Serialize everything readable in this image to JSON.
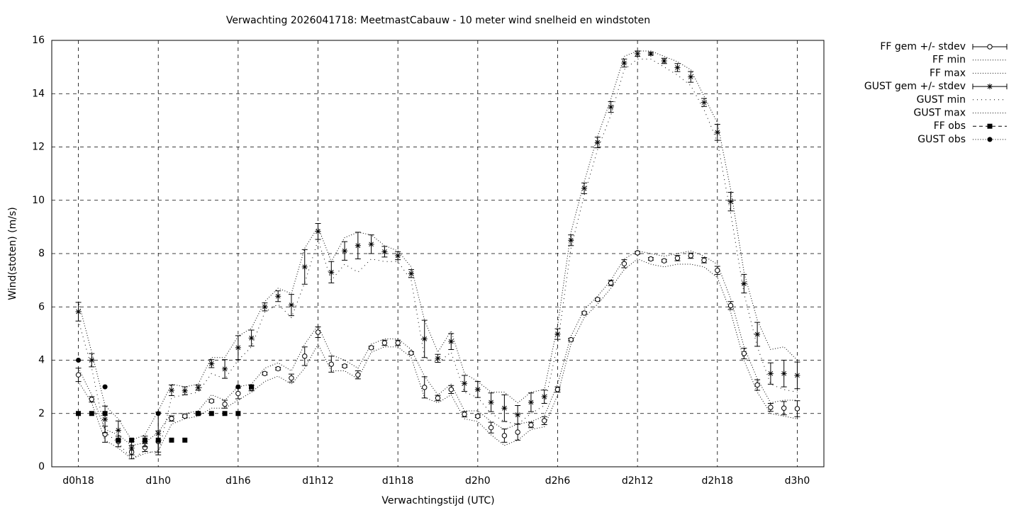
{
  "chart_data": {
    "type": "line",
    "title": "Verwachting 2026041718: MeetmastCabauw - 10 meter wind snelheid en windstoten",
    "xlabel": "Verwachtingstijd (UTC)",
    "ylabel": "Wind(stoten) (m/s)",
    "color": "#000000",
    "grid": true,
    "legend": "right",
    "xlim": [
      16,
      74
    ],
    "xticks": [
      {
        "value": 18,
        "label": "d0h18"
      },
      {
        "value": 24,
        "label": "d1h0"
      },
      {
        "value": 30,
        "label": "d1h6"
      },
      {
        "value": 36,
        "label": "d1h12"
      },
      {
        "value": 42,
        "label": "d1h18"
      },
      {
        "value": 48,
        "label": "d2h0"
      },
      {
        "value": 54,
        "label": "d2h6"
      },
      {
        "value": 60,
        "label": "d2h12"
      },
      {
        "value": 66,
        "label": "d2h18"
      },
      {
        "value": 72,
        "label": "d3h0"
      }
    ],
    "ylim": [
      0,
      16
    ],
    "yticks": [
      0,
      2,
      4,
      6,
      8,
      10,
      12,
      14,
      16
    ],
    "x": [
      18,
      19,
      20,
      21,
      22,
      23,
      24,
      25,
      26,
      27,
      28,
      29,
      30,
      31,
      32,
      33,
      34,
      35,
      36,
      37,
      38,
      39,
      40,
      41,
      42,
      43,
      44,
      45,
      46,
      47,
      48,
      49,
      50,
      51,
      52,
      53,
      54,
      55,
      56,
      57,
      58,
      59,
      60,
      61,
      62,
      63,
      64,
      65,
      66,
      67,
      68,
      69,
      70,
      71,
      72
    ],
    "series": [
      {
        "name": "FF gem +/- stdev",
        "marker": "circle",
        "line": "errorbar",
        "values": [
          3.45,
          2.53,
          1.22,
          0.95,
          0.55,
          0.72,
          0.95,
          1.81,
          1.9,
          2.0,
          2.47,
          2.35,
          2.75,
          2.95,
          3.5,
          3.68,
          3.33,
          4.15,
          5.05,
          3.85,
          3.78,
          3.45,
          4.47,
          4.65,
          4.65,
          4.27,
          2.98,
          2.58,
          2.9,
          1.97,
          1.9,
          1.47,
          1.17,
          1.3,
          1.57,
          1.73,
          2.9,
          4.77,
          5.77,
          6.28,
          6.9,
          7.62,
          8.03,
          7.8,
          7.73,
          7.83,
          7.92,
          7.75,
          7.37,
          6.05,
          4.25,
          3.07,
          2.23,
          2.2,
          2.18
        ],
        "err": [
          0.25,
          0.1,
          0.3,
          0.2,
          0.25,
          0.15,
          0.4,
          0.1,
          0.05,
          0.05,
          0.05,
          0.15,
          0.2,
          0.1,
          0.05,
          0.05,
          0.15,
          0.35,
          0.2,
          0.3,
          0.05,
          0.15,
          0.05,
          0.1,
          0.1,
          0.05,
          0.4,
          0.1,
          0.15,
          0.1,
          0.05,
          0.2,
          0.25,
          0.3,
          0.1,
          0.15,
          0.1,
          0.05,
          0.05,
          0.05,
          0.1,
          0.15,
          0.05,
          0.05,
          0.05,
          0.1,
          0.1,
          0.1,
          0.15,
          0.15,
          0.2,
          0.2,
          0.15,
          0.25,
          0.3
        ]
      },
      {
        "name": "FF min",
        "marker": "none",
        "line": "dotted",
        "values": [
          3.2,
          2.4,
          1.0,
          0.7,
          0.3,
          0.5,
          0.6,
          1.6,
          1.8,
          1.9,
          2.2,
          2.2,
          2.5,
          2.8,
          3.2,
          3.4,
          3.1,
          3.7,
          4.6,
          3.6,
          3.6,
          3.3,
          4.3,
          4.5,
          4.5,
          4.1,
          2.6,
          2.4,
          2.7,
          1.8,
          1.7,
          1.2,
          0.8,
          1.0,
          1.4,
          1.5,
          2.7,
          4.6,
          5.6,
          6.1,
          6.7,
          7.4,
          7.8,
          7.6,
          7.5,
          7.6,
          7.6,
          7.5,
          7.1,
          5.8,
          4.0,
          2.8,
          2.0,
          1.9,
          1.8
        ]
      },
      {
        "name": "FF max",
        "marker": "none",
        "line": "dotted",
        "values": [
          3.7,
          2.7,
          1.4,
          1.2,
          0.8,
          0.9,
          1.3,
          2.0,
          2.0,
          2.1,
          2.7,
          2.5,
          3.0,
          3.1,
          3.7,
          3.9,
          3.6,
          4.6,
          5.3,
          4.2,
          4.0,
          3.7,
          4.6,
          4.8,
          4.8,
          4.4,
          3.4,
          2.7,
          3.1,
          2.1,
          2.1,
          1.7,
          1.4,
          1.6,
          1.7,
          1.9,
          3.1,
          4.9,
          5.9,
          6.4,
          7.0,
          7.8,
          8.1,
          8.0,
          7.9,
          8.0,
          8.1,
          7.9,
          7.6,
          6.3,
          4.5,
          3.3,
          2.4,
          2.5,
          2.5
        ]
      },
      {
        "name": "GUST gem +/- stdev",
        "marker": "star",
        "line": "errorbar",
        "values": [
          5.82,
          4.0,
          1.78,
          1.37,
          0.7,
          0.95,
          1.25,
          2.87,
          2.85,
          2.97,
          3.87,
          3.67,
          4.47,
          4.83,
          6.0,
          6.4,
          6.07,
          7.5,
          8.83,
          7.3,
          8.1,
          8.3,
          8.35,
          8.07,
          7.92,
          7.25,
          4.8,
          4.07,
          4.7,
          3.13,
          2.9,
          2.42,
          2.2,
          1.95,
          2.42,
          2.63,
          4.98,
          8.5,
          10.45,
          12.17,
          13.5,
          15.15,
          15.5,
          15.5,
          15.23,
          14.98,
          14.63,
          13.67,
          12.55,
          9.95,
          6.87,
          4.97,
          3.5,
          3.5,
          3.43
        ],
        "err": [
          0.35,
          0.25,
          0.5,
          0.35,
          0.25,
          0.2,
          0.8,
          0.2,
          0.15,
          0.1,
          0.15,
          0.35,
          0.45,
          0.3,
          0.15,
          0.2,
          0.4,
          0.65,
          0.3,
          0.4,
          0.35,
          0.5,
          0.35,
          0.2,
          0.15,
          0.15,
          0.7,
          0.15,
          0.3,
          0.3,
          0.3,
          0.35,
          0.5,
          0.35,
          0.35,
          0.25,
          0.2,
          0.2,
          0.2,
          0.2,
          0.2,
          0.15,
          0.1,
          0.05,
          0.1,
          0.15,
          0.2,
          0.15,
          0.3,
          0.35,
          0.35,
          0.45,
          0.4,
          0.5,
          0.5
        ]
      },
      {
        "name": "GUST min",
        "marker": "none",
        "line": "sparse",
        "values": [
          5.5,
          3.7,
          1.3,
          0.9,
          0.3,
          0.6,
          0.5,
          2.6,
          2.7,
          2.8,
          3.5,
          3.3,
          4.0,
          4.5,
          5.8,
          6.1,
          5.6,
          6.9,
          8.5,
          7.0,
          7.6,
          7.3,
          7.8,
          7.7,
          7.7,
          7.0,
          4.1,
          3.9,
          4.3,
          2.8,
          2.6,
          2.0,
          1.7,
          1.6,
          2.0,
          2.3,
          4.6,
          8.2,
          10.2,
          11.9,
          13.2,
          14.9,
          15.3,
          15.3,
          15.0,
          14.7,
          14.3,
          13.4,
          12.2,
          9.5,
          6.5,
          4.5,
          3.1,
          2.9,
          2.8
        ]
      },
      {
        "name": "GUST max",
        "marker": "none",
        "line": "dotted",
        "values": [
          6.2,
          4.3,
          2.3,
          1.8,
          1.0,
          1.2,
          2.1,
          3.1,
          3.0,
          3.1,
          4.1,
          4.1,
          4.9,
          5.2,
          6.2,
          6.7,
          6.5,
          8.2,
          9.0,
          7.7,
          8.6,
          8.8,
          8.7,
          8.3,
          8.1,
          7.5,
          5.5,
          4.3,
          5.1,
          3.5,
          3.2,
          2.8,
          2.8,
          2.4,
          2.8,
          2.9,
          5.3,
          8.8,
          10.7,
          12.4,
          13.8,
          15.4,
          15.6,
          15.6,
          15.4,
          15.2,
          14.9,
          13.9,
          12.9,
          10.4,
          7.3,
          5.5,
          4.4,
          4.5,
          4.0
        ]
      },
      {
        "name": "FF obs",
        "marker": "square",
        "line": "dashed",
        "x": [
          18,
          19,
          20,
          21,
          22,
          23,
          24,
          25,
          26,
          27,
          28,
          29,
          30,
          31
        ],
        "values": [
          2,
          2,
          2,
          1,
          1,
          1,
          1,
          1,
          1,
          2,
          2,
          2,
          2,
          3
        ]
      },
      {
        "name": "GUST obs",
        "marker": "dot",
        "line": "dotted",
        "x": [
          18,
          20,
          24,
          30
        ],
        "values": [
          4,
          3,
          2,
          3
        ]
      }
    ]
  }
}
